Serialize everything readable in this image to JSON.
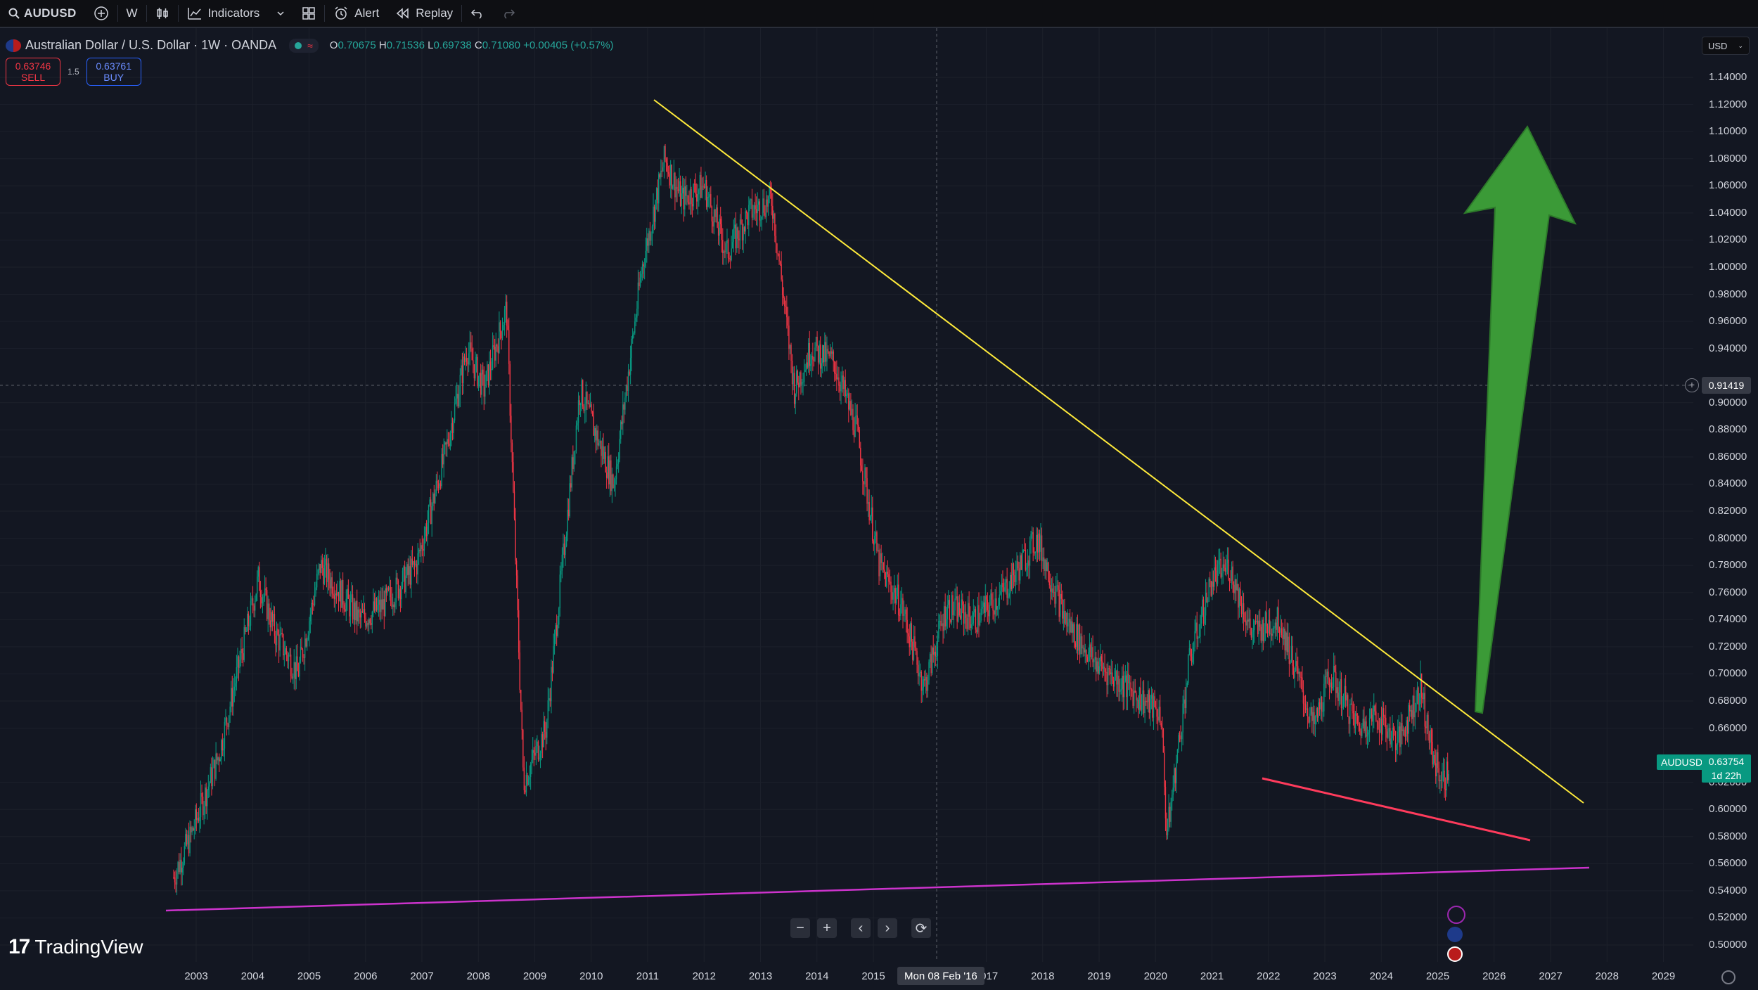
{
  "toolbar": {
    "symbol": "AUDUSD",
    "interval": "W",
    "indicators_label": "Indicators",
    "alert_label": "Alert",
    "replay_label": "Replay"
  },
  "legend": {
    "title": "Australian Dollar / U.S. Dollar · 1W · OANDA",
    "open_key": "O",
    "open": "0.70675",
    "high_key": "H",
    "high": "0.71536",
    "low_key": "L",
    "low": "0.69738",
    "close_key": "C",
    "close": "0.71080",
    "change": "+0.00405 (+0.57%)"
  },
  "trade": {
    "sell_price": "0.63746",
    "sell_label": "SELL",
    "spread": "1.5",
    "buy_price": "0.63761",
    "buy_label": "BUY"
  },
  "price_axis": {
    "currency": "USD",
    "labels": [
      "1.14000",
      "1.12000",
      "1.10000",
      "1.08000",
      "1.06000",
      "1.04000",
      "1.02000",
      "1.00000",
      "0.98000",
      "0.96000",
      "0.94000",
      "0.90000",
      "0.88000",
      "0.86000",
      "0.84000",
      "0.82000",
      "0.80000",
      "0.78000",
      "0.76000",
      "0.74000",
      "0.72000",
      "0.70000",
      "0.68000",
      "0.66000",
      "0.62000",
      "0.60000",
      "0.58000",
      "0.56000",
      "0.54000",
      "0.52000",
      "0.50000"
    ],
    "crosshair_price": "0.91419",
    "last_symbol": "AUDUSD",
    "last_price": "0.63754",
    "countdown": "1d 22h"
  },
  "time_axis": {
    "labels": [
      "2003",
      "2004",
      "2005",
      "2006",
      "2007",
      "2008",
      "2009",
      "2010",
      "2011",
      "2012",
      "2013",
      "2014",
      "2015",
      "2017",
      "2018",
      "2019",
      "2020",
      "2021",
      "2022",
      "2023",
      "2024",
      "2025",
      "2026",
      "2027",
      "2028",
      "2029"
    ],
    "crosshair_date": "Mon 08 Feb '16"
  },
  "branding": {
    "logo_text": "TradingView"
  },
  "colors": {
    "background": "#131722",
    "up": "#089981",
    "down": "#f23645",
    "resistance_line": "#ffeb3b",
    "support_line": "#ff3b5c",
    "base_line": "#cc33cc",
    "arrow": "#3b9a37"
  }
}
